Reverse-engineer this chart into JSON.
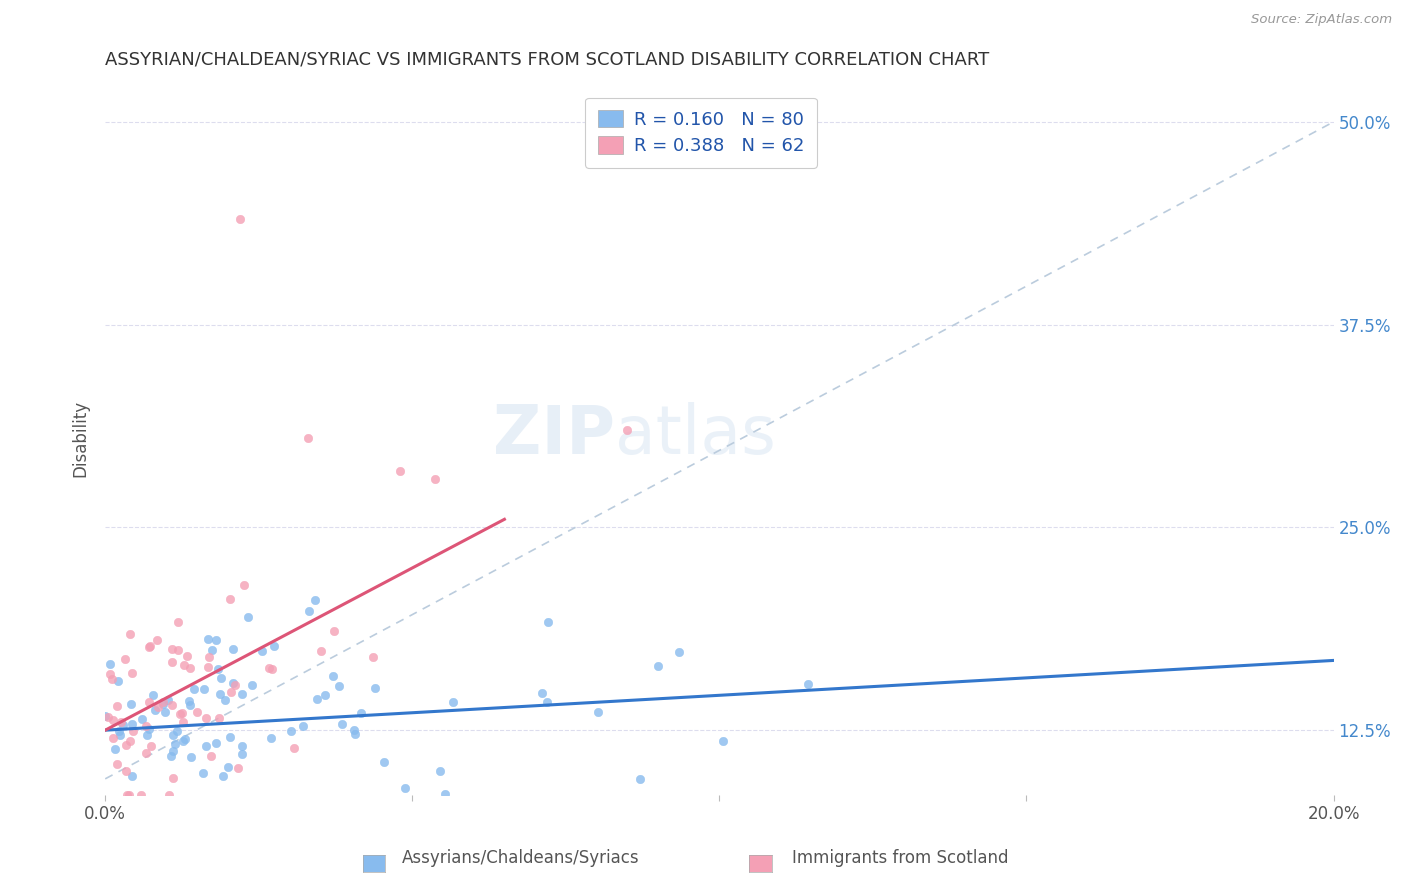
{
  "title": "ASSYRIAN/CHALDEAN/SYRIAC VS IMMIGRANTS FROM SCOTLAND DISABILITY CORRELATION CHART",
  "source_text": "Source: ZipAtlas.com",
  "ylabel": "Disability",
  "x_min": 0.0,
  "x_max": 0.2,
  "y_min": 0.085,
  "y_max": 0.525,
  "y_ticks": [
    0.125,
    0.25,
    0.375,
    0.5
  ],
  "y_tick_labels": [
    "12.5%",
    "25.0%",
    "37.5%",
    "50.0%"
  ],
  "blue_color": "#88bbee",
  "pink_color": "#f4a0b5",
  "blue_line_color": "#3377cc",
  "pink_line_color": "#dd5577",
  "dashed_line_color": "#bbccdd",
  "legend_R1": "R = 0.160",
  "legend_N1": "N = 80",
  "legend_R2": "R = 0.388",
  "legend_N2": "N = 62",
  "label1": "Assyrians/Chaldeans/Syriacs",
  "label2": "Immigrants from Scotland",
  "watermark_zip": "ZIP",
  "watermark_atlas": "atlas",
  "blue_R": 0.16,
  "pink_R": 0.388,
  "background_color": "#ffffff",
  "grid_color": "#ddddee",
  "title_color": "#333333",
  "tick_color": "#4488cc",
  "label_color": "#555555"
}
